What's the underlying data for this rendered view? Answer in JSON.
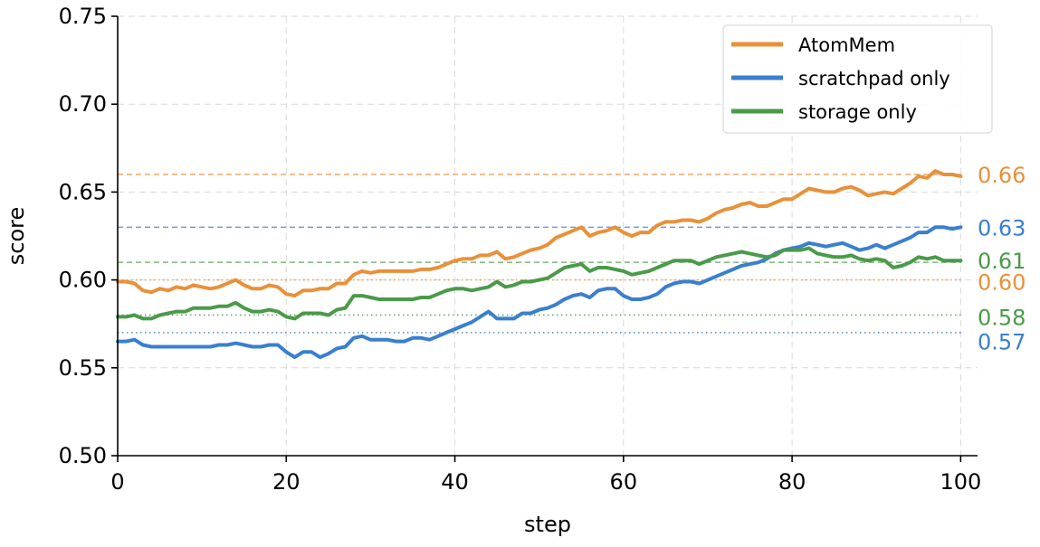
{
  "chart_data": {
    "type": "line",
    "title": "",
    "xlabel": "step",
    "ylabel": "score",
    "xlim": [
      0,
      102
    ],
    "ylim": [
      0.5,
      0.75
    ],
    "xticks": [
      0,
      20,
      40,
      60,
      80,
      100
    ],
    "xtick_labels": [
      "0",
      "20",
      "40",
      "60",
      "80",
      "100"
    ],
    "yticks": [
      0.5,
      0.55,
      0.6,
      0.65,
      0.7,
      0.75
    ],
    "ytick_labels": [
      "0.50",
      "0.55",
      "0.60",
      "0.65",
      "0.70",
      "0.75"
    ],
    "grid": true,
    "legend_position": "top-right",
    "x": [
      0,
      1,
      2,
      3,
      4,
      5,
      6,
      7,
      8,
      9,
      10,
      11,
      12,
      13,
      14,
      15,
      16,
      17,
      18,
      19,
      20,
      21,
      22,
      23,
      24,
      25,
      26,
      27,
      28,
      29,
      30,
      31,
      32,
      33,
      34,
      35,
      36,
      37,
      38,
      39,
      40,
      41,
      42,
      43,
      44,
      45,
      46,
      47,
      48,
      49,
      50,
      51,
      52,
      53,
      54,
      55,
      56,
      57,
      58,
      59,
      60,
      61,
      62,
      63,
      64,
      65,
      66,
      67,
      68,
      69,
      70,
      71,
      72,
      73,
      74,
      75,
      76,
      77,
      78,
      79,
      80,
      81,
      82,
      83,
      84,
      85,
      86,
      87,
      88,
      89,
      90,
      91,
      92,
      93,
      94,
      95,
      96,
      97,
      98,
      99,
      100
    ],
    "series": [
      {
        "name": "AtomMem",
        "color": "#e8913a",
        "values": [
          0.599,
          0.599,
          0.598,
          0.594,
          0.593,
          0.595,
          0.594,
          0.596,
          0.595,
          0.597,
          0.596,
          0.595,
          0.596,
          0.598,
          0.6,
          0.597,
          0.595,
          0.595,
          0.597,
          0.596,
          0.592,
          0.591,
          0.594,
          0.594,
          0.595,
          0.595,
          0.598,
          0.598,
          0.603,
          0.605,
          0.604,
          0.605,
          0.605,
          0.605,
          0.605,
          0.605,
          0.606,
          0.606,
          0.607,
          0.609,
          0.611,
          0.612,
          0.612,
          0.614,
          0.614,
          0.616,
          0.612,
          0.613,
          0.615,
          0.617,
          0.618,
          0.62,
          0.624,
          0.626,
          0.628,
          0.63,
          0.625,
          0.627,
          0.628,
          0.63,
          0.627,
          0.625,
          0.627,
          0.627,
          0.631,
          0.633,
          0.633,
          0.634,
          0.634,
          0.633,
          0.635,
          0.638,
          0.64,
          0.641,
          0.643,
          0.644,
          0.642,
          0.642,
          0.644,
          0.646,
          0.646,
          0.649,
          0.652,
          0.651,
          0.65,
          0.65,
          0.652,
          0.653,
          0.651,
          0.648,
          0.649,
          0.65,
          0.649,
          0.652,
          0.655,
          0.659,
          0.658,
          0.662,
          0.66,
          0.66,
          0.659
        ],
        "reference": 0.66,
        "start_reference": 0.6
      },
      {
        "name": "scratchpad only",
        "color": "#3a7fcf",
        "values": [
          0.565,
          0.565,
          0.566,
          0.563,
          0.562,
          0.562,
          0.562,
          0.562,
          0.562,
          0.562,
          0.562,
          0.562,
          0.563,
          0.563,
          0.564,
          0.563,
          0.562,
          0.562,
          0.563,
          0.563,
          0.559,
          0.556,
          0.559,
          0.559,
          0.556,
          0.558,
          0.561,
          0.562,
          0.567,
          0.568,
          0.566,
          0.566,
          0.566,
          0.565,
          0.565,
          0.567,
          0.567,
          0.566,
          0.568,
          0.57,
          0.572,
          0.574,
          0.576,
          0.579,
          0.582,
          0.578,
          0.578,
          0.578,
          0.581,
          0.581,
          0.583,
          0.584,
          0.586,
          0.589,
          0.591,
          0.592,
          0.59,
          0.594,
          0.595,
          0.595,
          0.591,
          0.589,
          0.589,
          0.59,
          0.592,
          0.596,
          0.598,
          0.599,
          0.599,
          0.598,
          0.6,
          0.602,
          0.604,
          0.606,
          0.608,
          0.609,
          0.61,
          0.612,
          0.615,
          0.617,
          0.618,
          0.619,
          0.621,
          0.62,
          0.619,
          0.62,
          0.621,
          0.619,
          0.617,
          0.618,
          0.62,
          0.618,
          0.62,
          0.622,
          0.624,
          0.627,
          0.627,
          0.63,
          0.63,
          0.629,
          0.63
        ],
        "reference": 0.63,
        "start_reference": 0.57
      },
      {
        "name": "storage only",
        "color": "#4a9a4a",
        "values": [
          0.579,
          0.579,
          0.58,
          0.578,
          0.578,
          0.58,
          0.581,
          0.582,
          0.582,
          0.584,
          0.584,
          0.584,
          0.585,
          0.585,
          0.587,
          0.584,
          0.582,
          0.582,
          0.583,
          0.582,
          0.579,
          0.578,
          0.581,
          0.581,
          0.581,
          0.58,
          0.583,
          0.584,
          0.591,
          0.591,
          0.59,
          0.589,
          0.589,
          0.589,
          0.589,
          0.589,
          0.59,
          0.59,
          0.592,
          0.594,
          0.595,
          0.595,
          0.594,
          0.595,
          0.596,
          0.599,
          0.596,
          0.597,
          0.599,
          0.599,
          0.6,
          0.601,
          0.604,
          0.607,
          0.608,
          0.609,
          0.605,
          0.607,
          0.607,
          0.606,
          0.605,
          0.603,
          0.604,
          0.605,
          0.607,
          0.609,
          0.611,
          0.611,
          0.611,
          0.609,
          0.611,
          0.613,
          0.614,
          0.615,
          0.616,
          0.615,
          0.614,
          0.613,
          0.614,
          0.617,
          0.617,
          0.617,
          0.618,
          0.615,
          0.614,
          0.613,
          0.613,
          0.614,
          0.612,
          0.611,
          0.612,
          0.611,
          0.607,
          0.608,
          0.61,
          0.613,
          0.612,
          0.613,
          0.611,
          0.611,
          0.611
        ],
        "reference": 0.61,
        "start_reference": 0.58
      }
    ],
    "end_labels": [
      {
        "text": "0.66",
        "value": 0.66,
        "color": "#e8913a"
      },
      {
        "text": "0.63",
        "value": 0.63,
        "color": "#3a7fcf"
      },
      {
        "text": "0.61",
        "value": 0.611,
        "color": "#4a9a4a"
      },
      {
        "text": "0.60",
        "value": 0.599,
        "color": "#e8913a"
      },
      {
        "text": "0.58",
        "value": 0.579,
        "color": "#4a9a4a"
      },
      {
        "text": "0.57",
        "value": 0.565,
        "color": "#3a7fcf"
      }
    ]
  }
}
